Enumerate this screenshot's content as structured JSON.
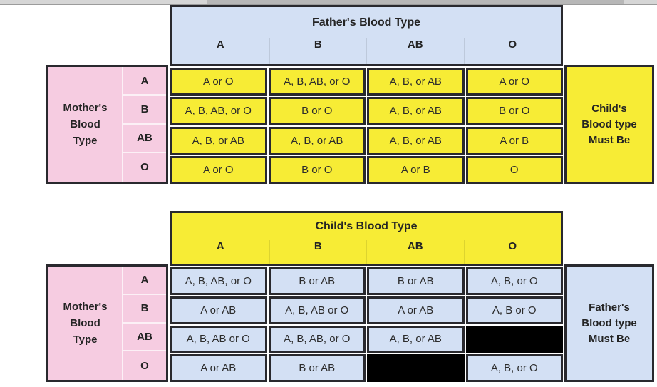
{
  "colors": {
    "yellow": "#f7ec35",
    "pink": "#f6cce1",
    "blue": "#d3e0f4",
    "border": "#29292e",
    "black": "#000000",
    "scroll_track": "#d6d6d6",
    "scroll_thumb": "#b7b7b7"
  },
  "top_table": {
    "header_title": "Father's Blood Type",
    "columns": [
      "A",
      "B",
      "AB",
      "O"
    ],
    "row_group_label": [
      "Mother's",
      "Blood",
      "Type"
    ],
    "rows": [
      {
        "label": "A",
        "cells": [
          "A or O",
          "A, B, AB, or O",
          "A, B, or AB",
          "A or O"
        ]
      },
      {
        "label": "B",
        "cells": [
          "A, B, AB, or O",
          "B or O",
          "A, B, or AB",
          "B or O"
        ]
      },
      {
        "label": "AB",
        "cells": [
          "A, B, or AB",
          "A, B, or AB",
          "A, B, or AB",
          "A or B"
        ]
      },
      {
        "label": "O",
        "cells": [
          "A or O",
          "B or O",
          "A or B",
          "O"
        ]
      }
    ],
    "result_label": [
      "Child's",
      "Blood type",
      "Must Be"
    ]
  },
  "bottom_table": {
    "header_title": "Child's Blood Type",
    "columns": [
      "A",
      "B",
      "AB",
      "O"
    ],
    "row_group_label": [
      "Mother's",
      "Blood",
      "Type"
    ],
    "rows": [
      {
        "label": "A",
        "cells": [
          "A, B, AB, or O",
          "B or AB",
          "B or AB",
          "A, B, or O"
        ]
      },
      {
        "label": "B",
        "cells": [
          "A or AB",
          "A, B, AB or O",
          "A or AB",
          "A, B or O"
        ]
      },
      {
        "label": "AB",
        "cells": [
          "A, B, AB or O",
          "A, B, AB, or O",
          "A, B, or AB",
          null
        ]
      },
      {
        "label": "O",
        "cells": [
          "A or AB",
          "B or AB",
          null,
          "A, B, or O"
        ]
      }
    ],
    "result_label": [
      "Father's",
      "Blood type",
      "Must Be"
    ]
  }
}
